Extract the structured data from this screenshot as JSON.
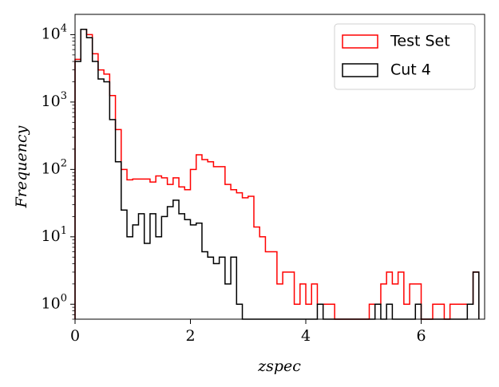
{
  "chart_data": {
    "type": "histogram",
    "log_y": true,
    "xlabel": "zspec",
    "ylabel": "Frequency",
    "bins": [
      0,
      0.1,
      0.2,
      0.3,
      0.4,
      0.5,
      0.6,
      0.7,
      0.8,
      0.9,
      1,
      1.1,
      1.2,
      1.3,
      1.4,
      1.5,
      1.6,
      1.7,
      1.8,
      1.9,
      2,
      2.1,
      2.2,
      2.3,
      2.4,
      2.5,
      2.6,
      2.7,
      2.8,
      2.9,
      3,
      3.1,
      3.2,
      3.3,
      3.4,
      3.5,
      3.6,
      3.7,
      3.8,
      3.9,
      4,
      4.1,
      4.2,
      4.3,
      4.4,
      4.5,
      4.6,
      4.7,
      4.8,
      4.9,
      5,
      5.1,
      5.2,
      5.3,
      5.4,
      5.5,
      5.6,
      5.7,
      5.8,
      5.9,
      6,
      6.1,
      6.2,
      6.3,
      6.4,
      6.5,
      6.6,
      6.7,
      6.8,
      6.9,
      7
    ],
    "series": [
      {
        "name": "Test Set",
        "color": "#ff0000",
        "values": [
          4300,
          12000,
          10000,
          5200,
          3000,
          2600,
          1250,
          390,
          100,
          70,
          72,
          72,
          72,
          65,
          80,
          75,
          60,
          75,
          55,
          50,
          100,
          165,
          140,
          130,
          110,
          110,
          60,
          50,
          45,
          38,
          40,
          14,
          10,
          6,
          6,
          2,
          3,
          3,
          1,
          2,
          1,
          2,
          1,
          1,
          1,
          0,
          0,
          0,
          0,
          0,
          0,
          1,
          1,
          2,
          3,
          2,
          3,
          1,
          2,
          2,
          0,
          0,
          1,
          1,
          0,
          1,
          1,
          1,
          1,
          3
        ]
      },
      {
        "name": "Cut 4",
        "color": "#000000",
        "values": [
          4000,
          12000,
          9000,
          4000,
          2200,
          2000,
          550,
          130,
          25,
          10,
          15,
          22,
          8,
          22,
          10,
          20,
          28,
          35,
          22,
          18,
          15,
          16,
          6,
          5,
          4,
          5,
          2,
          5,
          1,
          0,
          0,
          0,
          0,
          0,
          0,
          0,
          0,
          0,
          0,
          0,
          0,
          0,
          1,
          0,
          0,
          0,
          0,
          0,
          0,
          0,
          0,
          0,
          1,
          0,
          1,
          0,
          0,
          0,
          0,
          1,
          0,
          0,
          0,
          0,
          0,
          0,
          0,
          0,
          1,
          3
        ]
      }
    ],
    "xlim": [
      0,
      7.1
    ],
    "xticks": [
      0,
      2,
      4,
      6
    ],
    "ylim": [
      0.6,
      20000
    ],
    "yticks": [
      {
        "value": 1,
        "label": "10^0"
      },
      {
        "value": 10,
        "label": "10^1"
      },
      {
        "value": 100,
        "label": "10^2"
      },
      {
        "value": 1000,
        "label": "10^3"
      },
      {
        "value": 10000,
        "label": "10^4"
      }
    ],
    "legend": "upper right"
  }
}
